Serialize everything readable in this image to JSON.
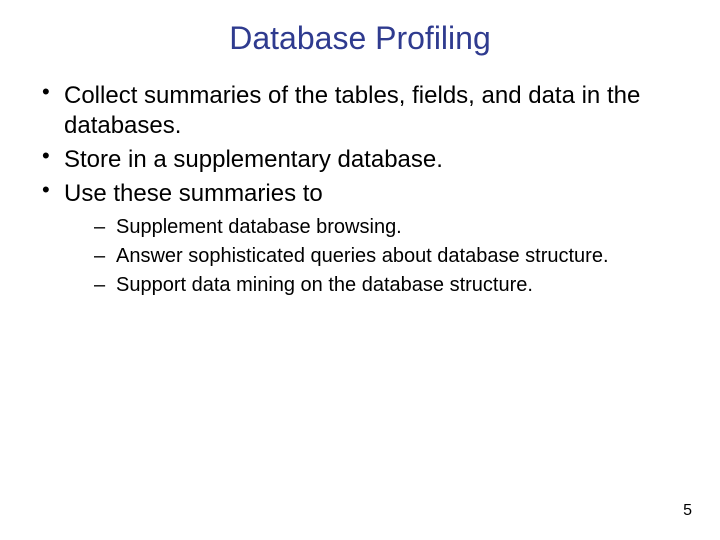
{
  "slide": {
    "title": "Database Profiling",
    "title_color": "#2f3b8f",
    "title_fontsize": 32,
    "body_fontsize": 24,
    "sub_fontsize": 20,
    "body_lineheight": 1.25,
    "background_color": "#ffffff",
    "text_color": "#000000",
    "pagenum_fontsize": 16,
    "bullets": [
      "Collect summaries of the tables, fields, and data in the databases.",
      "Store in a supplementary database.",
      "Use these summaries to"
    ],
    "sub_bullets": [
      "Supplement database browsing.",
      "Answer sophisticated queries about database structure.",
      "Support data mining on the database structure."
    ],
    "page_number": "5"
  }
}
